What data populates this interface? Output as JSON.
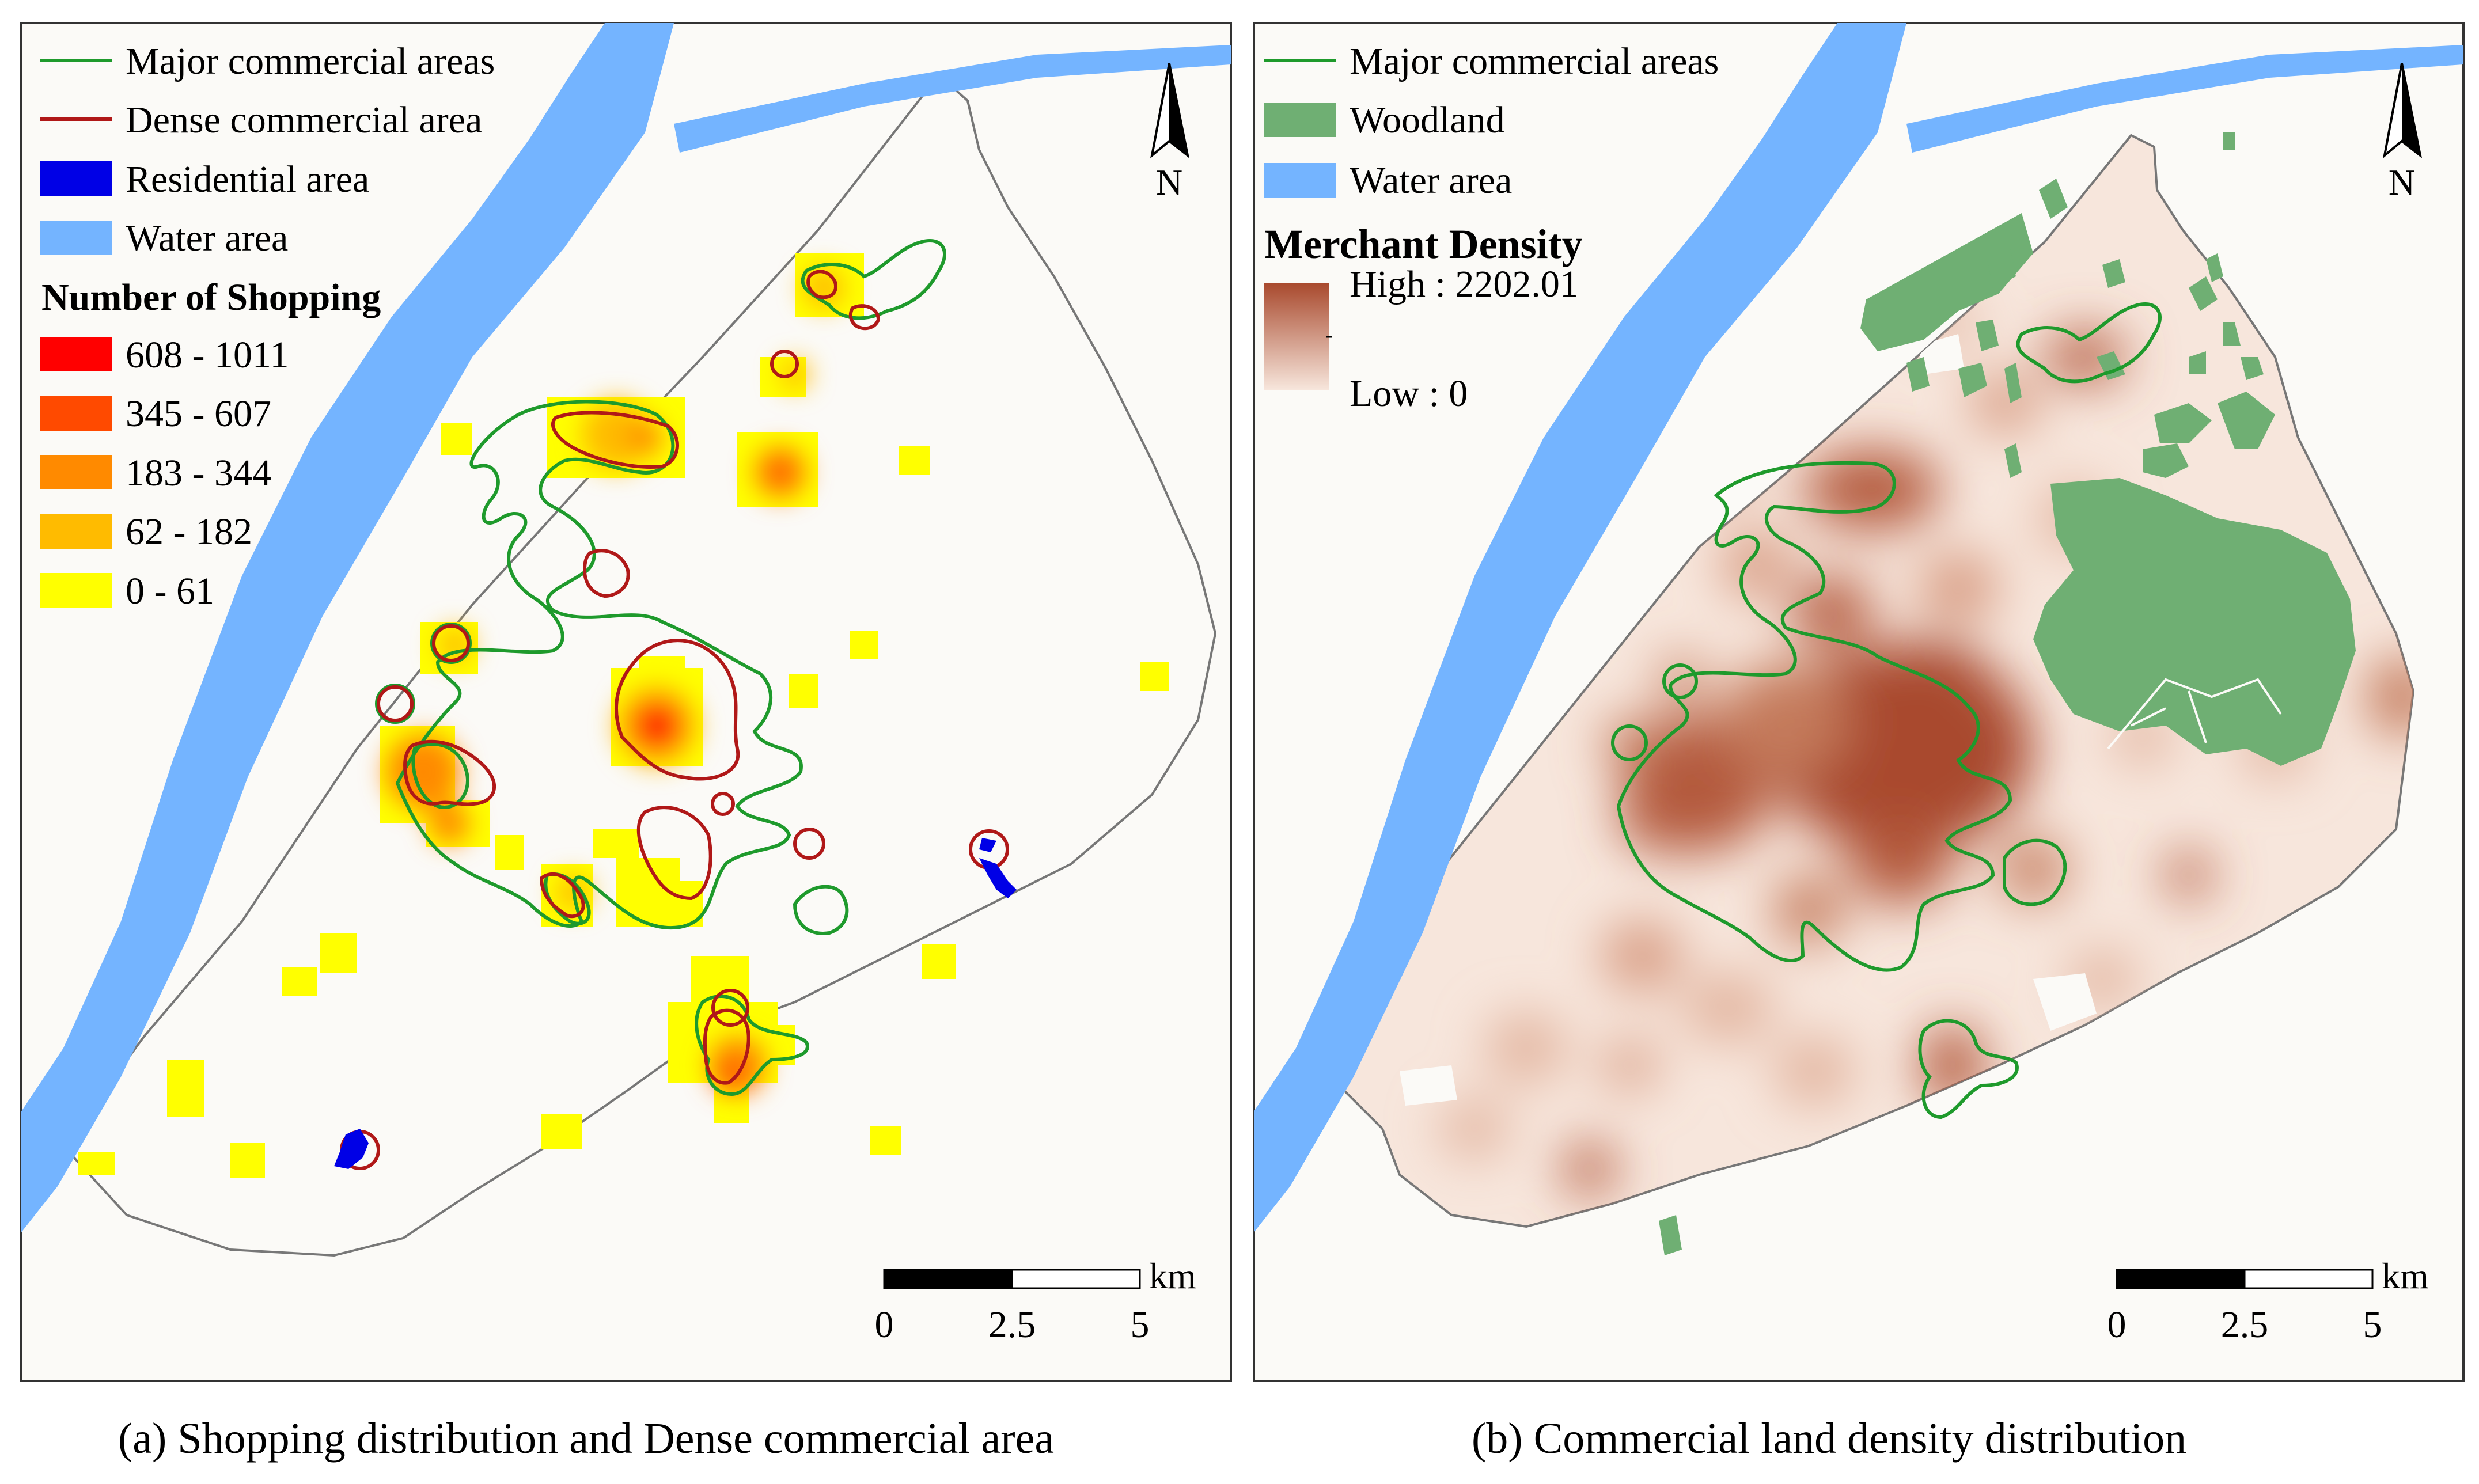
{
  "panel_a": {
    "caption": "(a) Shopping distribution and Dense commercial area",
    "legend": {
      "major_commercial_label": "Major commercial areas",
      "dense_commercial_label": "Dense commercial area",
      "residential_label": "Residential area",
      "water_label": "Water area",
      "classes_title": "Number of Shopping",
      "classes": [
        {
          "label": "608 - 1011",
          "color": "#ff0000"
        },
        {
          "label": "345 - 607",
          "color": "#ff4a00"
        },
        {
          "label": "183 - 344",
          "color": "#ff8a00"
        },
        {
          "label": "62 - 182",
          "color": "#ffbb00"
        },
        {
          "label": "0 - 61",
          "color": "#ffff00"
        }
      ]
    },
    "north_label": "N",
    "scale": {
      "unit": "km",
      "ticks": [
        "0",
        "2.5",
        "5"
      ]
    }
  },
  "panel_b": {
    "caption": "(b) Commercial land density distribution",
    "legend": {
      "major_commercial_label": "Major commercial areas",
      "woodland_label": "Woodland",
      "water_label": "Water area",
      "density_title": "Merchant Density",
      "high_label": "High : 2202.01",
      "low_label": "Low : 0"
    },
    "north_label": "N",
    "scale": {
      "unit": "km",
      "ticks": [
        "0",
        "2.5",
        "5"
      ]
    }
  },
  "colors": {
    "water": "#74b4ff",
    "land": "#faf8f4",
    "major_commercial": "#1e9a2c",
    "dense_commercial": "#b01818",
    "residential": "#0000e6",
    "woodland": "#6faf73",
    "density_high": "#a94a2e",
    "density_low": "#f7e6dc"
  }
}
